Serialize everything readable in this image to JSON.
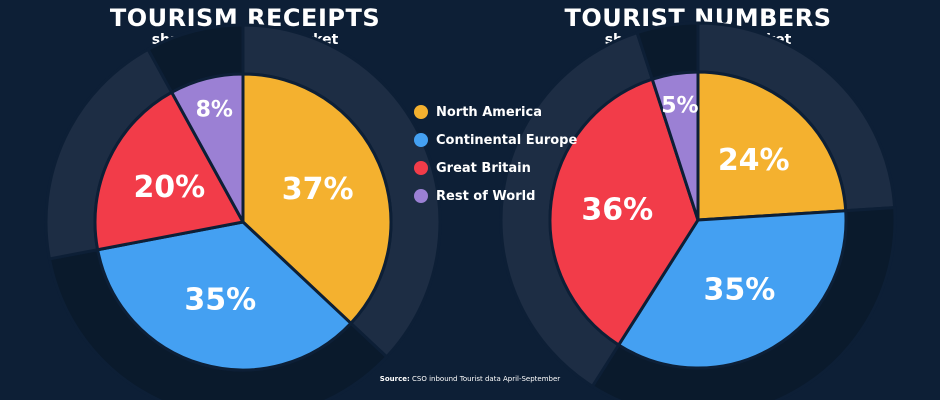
{
  "colors": {
    "background": "#0d1f36",
    "north_america": "#f4b12f",
    "continental_europe": "#44a0f2",
    "great_britain": "#f23c49",
    "rest_of_world": "#9b80d4",
    "outer_ring_dark": "#0a1a2c",
    "outer_ring_mid": "#1d2d44"
  },
  "legend": [
    {
      "label": "North America",
      "color": "#f4b12f"
    },
    {
      "label": "Continental Europe",
      "color": "#44a0f2"
    },
    {
      "label": "Great Britain",
      "color": "#f23c49"
    },
    {
      "label": "Rest of World",
      "color": "#9b80d4"
    }
  ],
  "source": {
    "prefix": "Source:",
    "text": "CSO inbound Tourist data April-September"
  },
  "chart_data": [
    {
      "type": "pie",
      "title": "TOURISM RECEIPTS",
      "subtitle": "share by source market",
      "categories": [
        "North America",
        "Continental Europe",
        "Great Britain",
        "Rest of World"
      ],
      "values": [
        37,
        35,
        20,
        8
      ],
      "labels": [
        "37%",
        "35%",
        "20%",
        "8%"
      ]
    },
    {
      "type": "pie",
      "title": "TOURIST NUMBERS",
      "subtitle": "share by source market",
      "categories": [
        "North America",
        "Continental Europe",
        "Great Britain",
        "Rest of World"
      ],
      "values": [
        24,
        35,
        36,
        5
      ],
      "labels": [
        "24%",
        "35%",
        "36%",
        "5%"
      ]
    }
  ]
}
